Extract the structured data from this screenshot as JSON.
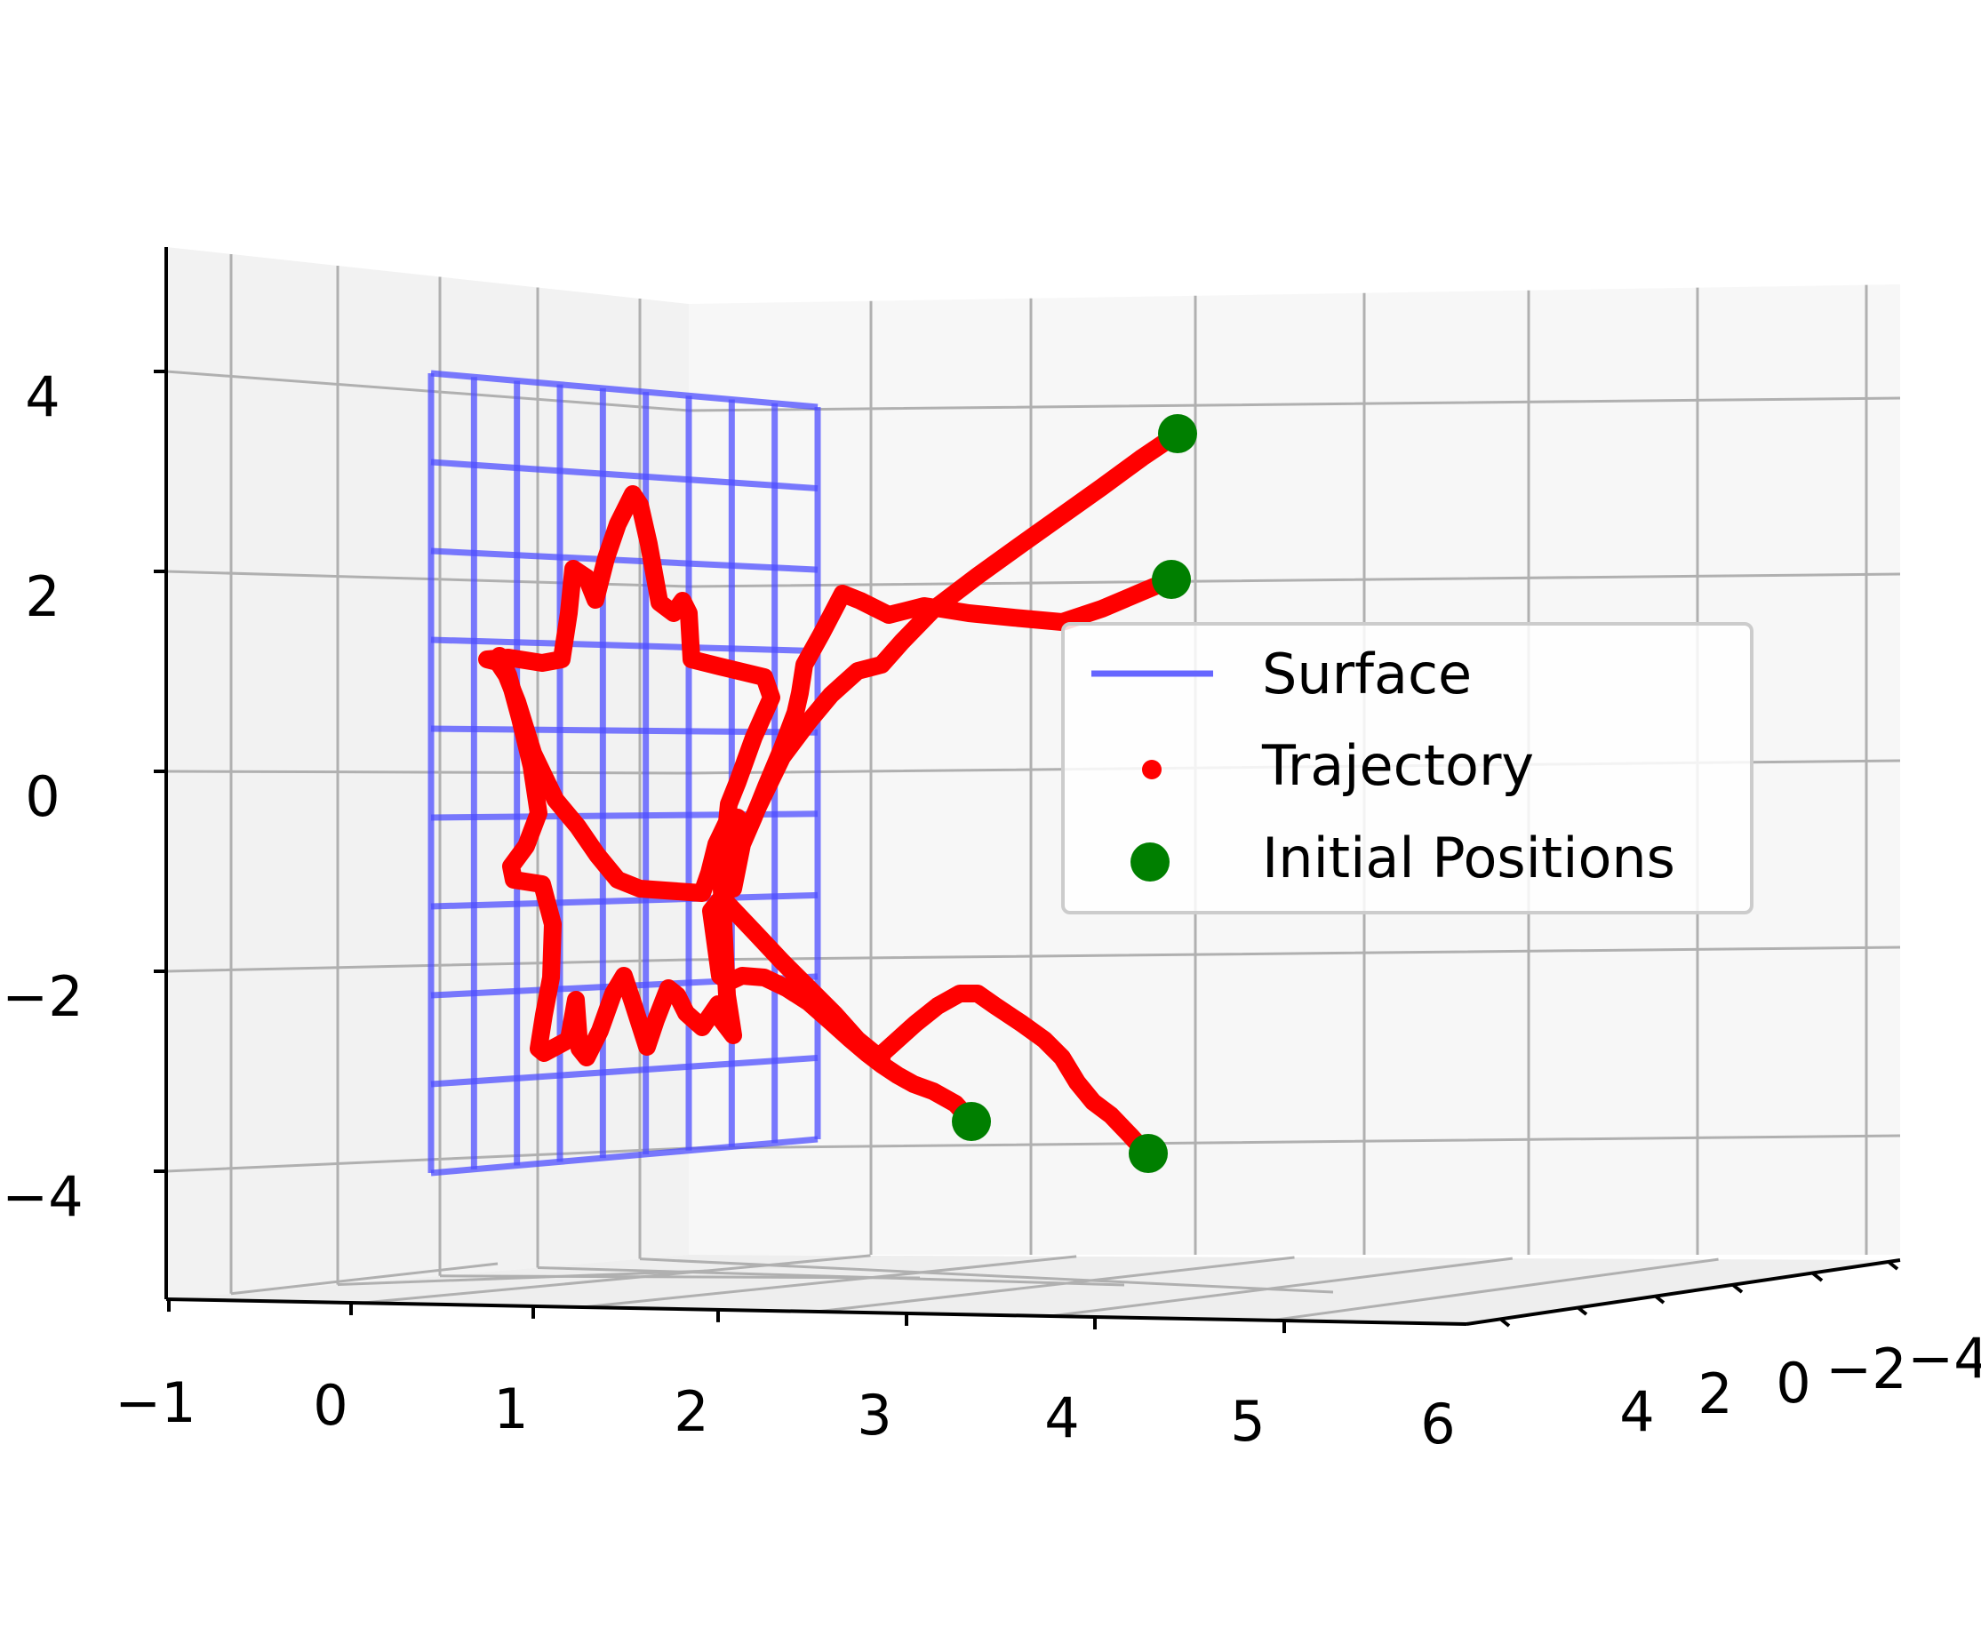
{
  "chart_data": {
    "type": "3d-line-scatter",
    "title": "",
    "xlabel": "",
    "ylabel": "",
    "zlabel": "",
    "x_ticks": [
      "−1",
      "0",
      "1",
      "2",
      "3",
      "4",
      "5",
      "6"
    ],
    "y_ticks": [
      "4",
      "2",
      "0",
      "−2",
      "−4"
    ],
    "z_ticks": [
      "4",
      "2",
      "0",
      "−2",
      "−4"
    ],
    "xlim": [
      -1,
      6
    ],
    "ylim": [
      -4,
      4
    ],
    "zlim": [
      -5,
      5
    ],
    "grid": true,
    "legend": {
      "placement": "center-right",
      "entries": [
        {
          "label": "Surface",
          "marker": "line",
          "color": "#6666ff"
        },
        {
          "label": "Trajectory",
          "marker": "dot",
          "color": "#ff0000"
        },
        {
          "label": "Initial Positions",
          "marker": "circle",
          "color": "#007f00"
        }
      ]
    },
    "series": [
      {
        "name": "Surface",
        "kind": "wireframe",
        "color": "#6666ff",
        "x_range": [
          0.2,
          2.4
        ],
        "z_range": [
          -4,
          4
        ]
      },
      {
        "name": "Trajectory",
        "kind": "paths",
        "color": "#ff0000",
        "paths": [
          {
            "start": [
              4.6,
              0,
              3.4
            ],
            "end": [
              2.6,
              0,
              -2.7
            ]
          },
          {
            "start": [
              4.6,
              0,
              2.0
            ],
            "end": [
              2.9,
              0,
              -2.7
            ]
          },
          {
            "start": [
              3.4,
              0,
              -3.4
            ],
            "end": [
              2.6,
              0,
              -2.4
            ]
          },
          {
            "start": [
              4.4,
              0,
              -3.7
            ],
            "end": [
              2.2,
              0,
              -2.7
            ]
          }
        ]
      },
      {
        "name": "Initial Positions",
        "kind": "scatter",
        "color": "#007f00",
        "points": [
          {
            "x": 4.6,
            "z": 3.4
          },
          {
            "x": 4.6,
            "z": 2.0
          },
          {
            "x": 3.4,
            "z": -3.4
          },
          {
            "x": 4.4,
            "z": -3.7
          }
        ]
      }
    ]
  }
}
